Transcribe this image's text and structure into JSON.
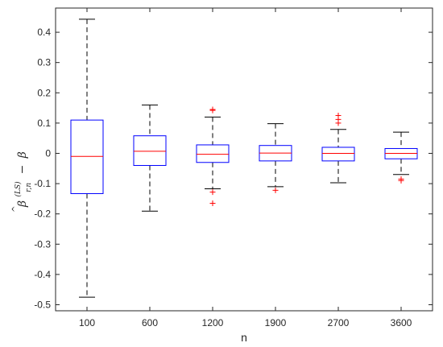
{
  "chart_data": {
    "type": "box",
    "title": "",
    "xlabel": "n",
    "ylabel": {
      "beta": "β",
      "hat": "^",
      "superscript": "(LS)",
      "subscript": "r,n",
      "minus": "−",
      "rhs": "β"
    },
    "ylim": [
      -0.52,
      0.48
    ],
    "yticks": [
      -0.5,
      -0.4,
      -0.3,
      -0.2,
      -0.1,
      0,
      0.1,
      0.2,
      0.3,
      0.4
    ],
    "ytick_labels": [
      "-0.5",
      "-0.4",
      "-0.3",
      "-0.2",
      "-0.1",
      "0",
      "0.1",
      "0.2",
      "0.3",
      "0.4"
    ],
    "categories": [
      "100",
      "600",
      "1200",
      "1900",
      "2700",
      "3600"
    ],
    "boxes": [
      {
        "whisker_low": -0.475,
        "q1": -0.133,
        "median": -0.01,
        "q3": 0.11,
        "whisker_high": 0.443,
        "outliers": []
      },
      {
        "whisker_low": -0.191,
        "q1": -0.04,
        "median": 0.007,
        "q3": 0.058,
        "whisker_high": 0.16,
        "outliers": []
      },
      {
        "whisker_low": -0.117,
        "q1": -0.03,
        "median": -0.003,
        "q3": 0.028,
        "whisker_high": 0.12,
        "outliers": [
          0.145,
          0.142,
          -0.128,
          -0.165
        ]
      },
      {
        "whisker_low": -0.11,
        "q1": -0.025,
        "median": 0.001,
        "q3": 0.026,
        "whisker_high": 0.098,
        "outliers": [
          -0.122
        ]
      },
      {
        "whisker_low": -0.097,
        "q1": -0.025,
        "median": 0.0,
        "q3": 0.02,
        "whisker_high": 0.079,
        "outliers": [
          0.125,
          0.112,
          0.1
        ]
      },
      {
        "whisker_low": -0.07,
        "q1": -0.018,
        "median": 0.0,
        "q3": 0.016,
        "whisker_high": 0.07,
        "outliers": [
          -0.085,
          -0.09
        ]
      }
    ],
    "colors": {
      "box": "#0000ff",
      "median": "#ff0000",
      "whisker": "#000000",
      "outlier": "#ff0000",
      "axis": "#262626"
    }
  }
}
